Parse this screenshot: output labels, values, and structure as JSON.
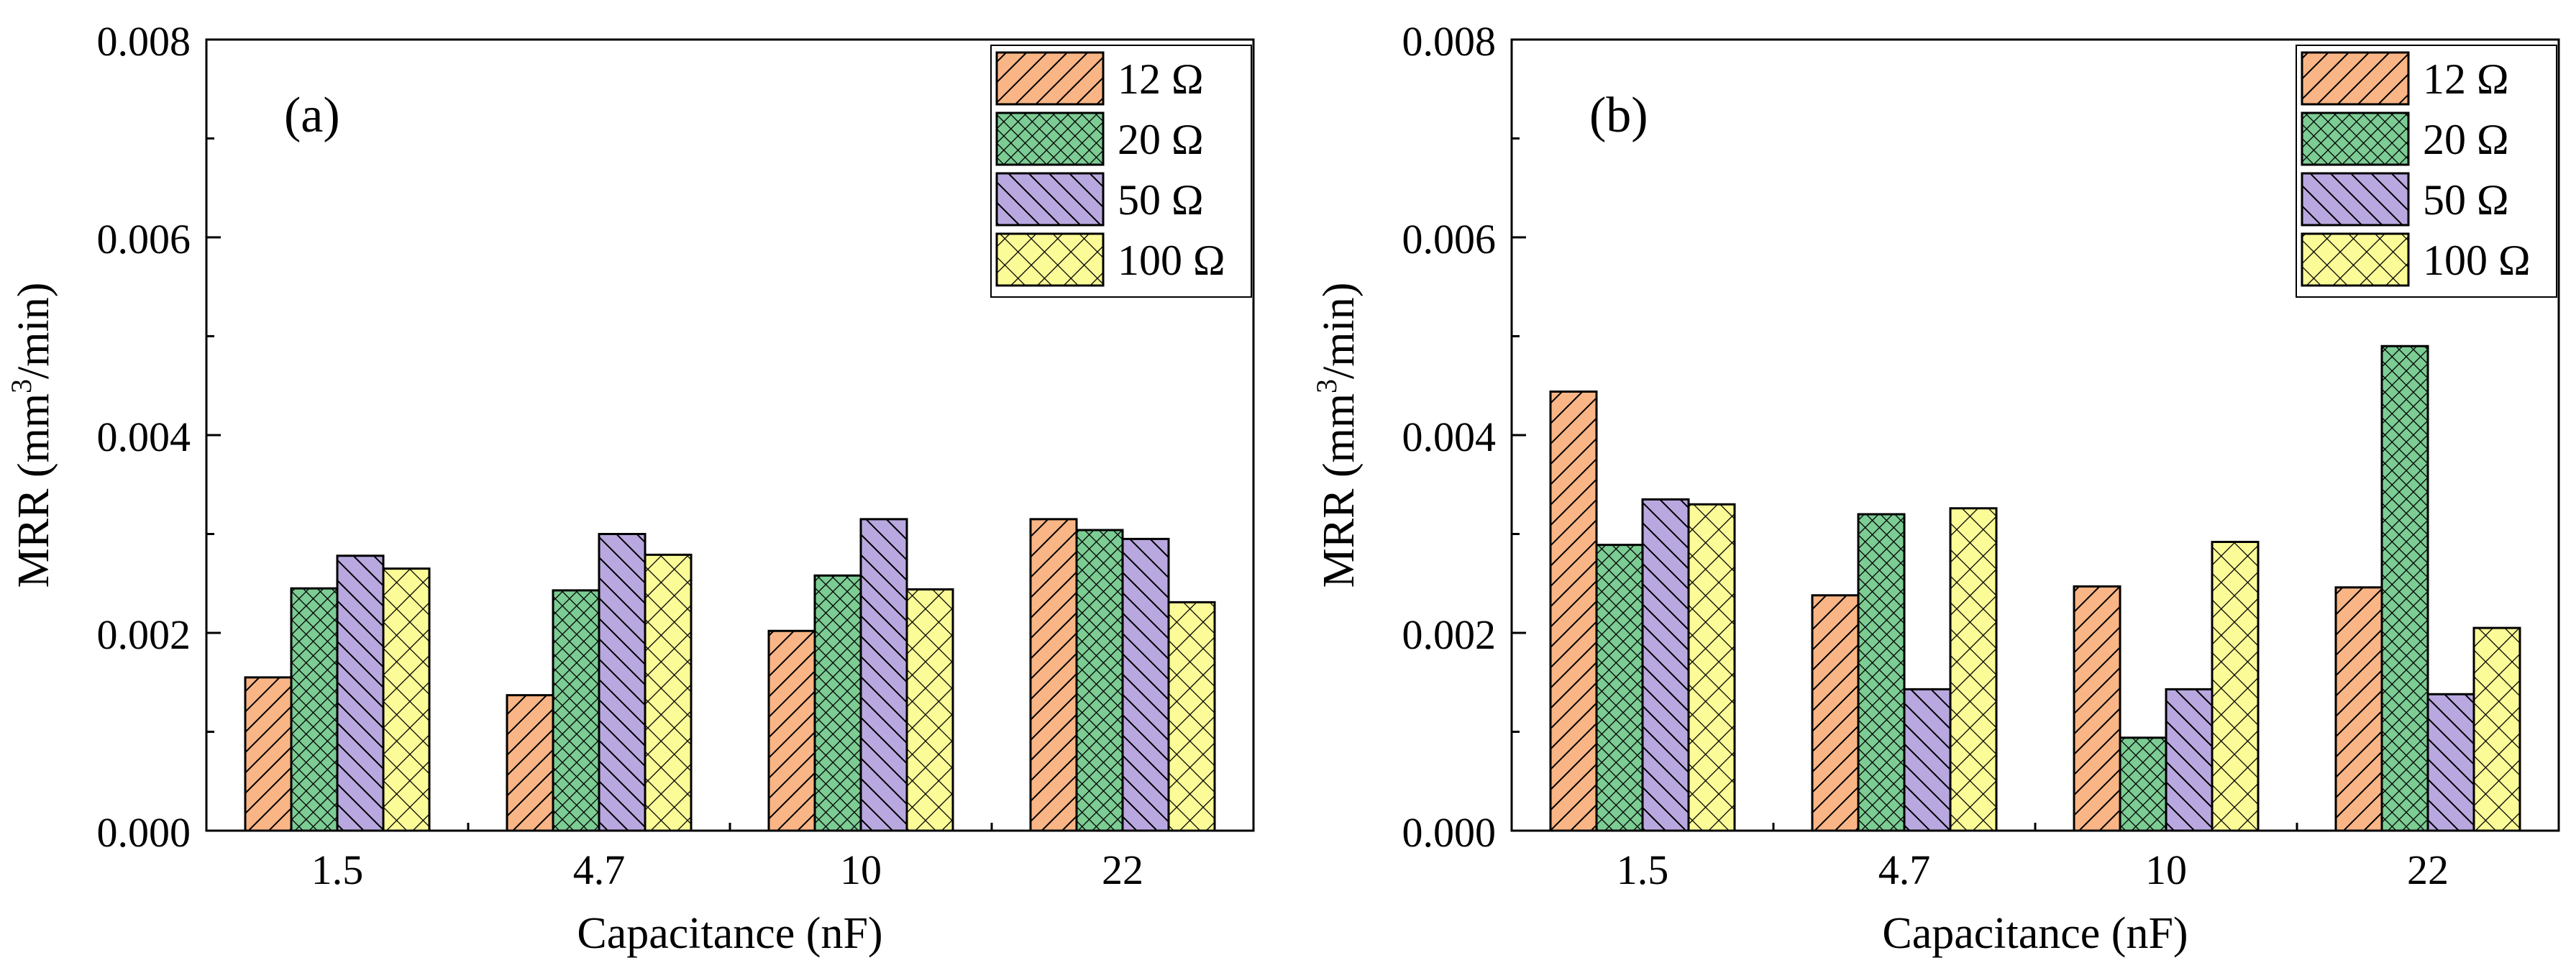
{
  "colors": {
    "12_ohm": "#f9b585",
    "20_ohm": "#7ccc94",
    "50_ohm": "#b9a8e0",
    "100_ohm": "#fbfb98",
    "pattern_stroke": "#000000"
  },
  "chart_data": [
    {
      "type": "bar",
      "panel_label": "(a)",
      "xlabel": "Capacitance (nF)",
      "ylabel_main": "MRR (mm",
      "ylabel_sup": "3",
      "ylabel_tail": "/min)",
      "categories": [
        "1.5",
        "4.7",
        "10",
        "22"
      ],
      "ylim": [
        0,
        0.008
      ],
      "yticks": [
        "0.000",
        "0.002",
        "0.004",
        "0.006",
        "0.008"
      ],
      "legend_position": "top-right",
      "series": [
        {
          "name": "12 Ω",
          "pattern": "hatch-forward",
          "values": [
            0.00155,
            0.00137,
            0.00202,
            0.00315
          ]
        },
        {
          "name": "20 Ω",
          "pattern": "crosshatch",
          "values": [
            0.00245,
            0.00243,
            0.00258,
            0.00304
          ]
        },
        {
          "name": "50 Ω",
          "pattern": "hatch-back",
          "values": [
            0.00278,
            0.003,
            0.00315,
            0.00295
          ]
        },
        {
          "name": "100 Ω",
          "pattern": "crosshatch-wide",
          "values": [
            0.00265,
            0.00279,
            0.00244,
            0.00231
          ]
        }
      ]
    },
    {
      "type": "bar",
      "panel_label": "(b)",
      "xlabel": "Capacitance (nF)",
      "ylabel_main": "MRR (mm",
      "ylabel_sup": "3",
      "ylabel_tail": "/min)",
      "categories": [
        "1.5",
        "4.7",
        "10",
        "22"
      ],
      "ylim": [
        0,
        0.008
      ],
      "yticks": [
        "0.000",
        "0.002",
        "0.004",
        "0.006",
        "0.008"
      ],
      "legend_position": "top-right",
      "series": [
        {
          "name": "12 Ω",
          "pattern": "hatch-forward",
          "values": [
            0.00444,
            0.00238,
            0.00247,
            0.00246
          ]
        },
        {
          "name": "20 Ω",
          "pattern": "crosshatch",
          "values": [
            0.00289,
            0.0032,
            0.00094,
            0.0049
          ]
        },
        {
          "name": "50 Ω",
          "pattern": "hatch-back",
          "values": [
            0.00335,
            0.00143,
            0.00143,
            0.00138
          ]
        },
        {
          "name": "100 Ω",
          "pattern": "crosshatch-wide",
          "values": [
            0.0033,
            0.00326,
            0.00292,
            0.00205
          ]
        }
      ]
    }
  ]
}
